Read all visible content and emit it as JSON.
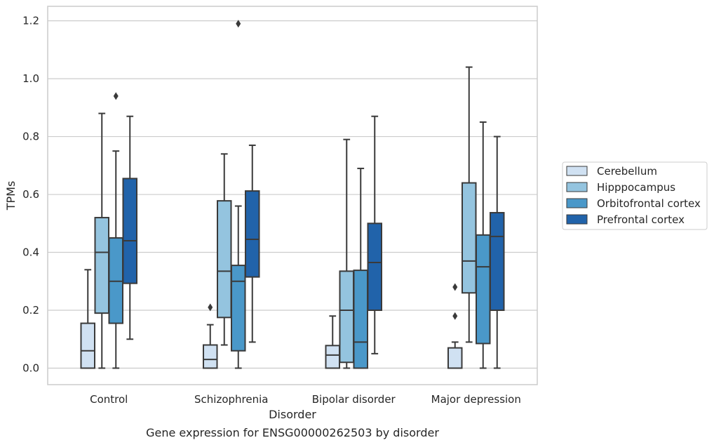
{
  "chart_data": {
    "type": "box",
    "title": "",
    "caption": "Gene expression for ENSG00000262503 by disorder",
    "xlabel": "Disorder",
    "ylabel": "TPMs",
    "ylim": [
      -0.057,
      1.25
    ],
    "yticks": [
      0.0,
      0.2,
      0.4,
      0.6,
      0.8,
      1.0,
      1.2
    ],
    "ytick_labels": [
      "0.0",
      "0.2",
      "0.4",
      "0.6",
      "0.8",
      "1.0",
      "1.2"
    ],
    "grid": "horizontal",
    "legend_position": "right",
    "categories": [
      "Control",
      "Schizophrenia",
      "Bipolar disorder",
      "Major depression"
    ],
    "series": [
      {
        "name": "Cerebellum",
        "color": "#d0e1f2",
        "boxes": [
          {
            "whisker_low": 0.0,
            "q1": 0.0,
            "median": 0.06,
            "q3": 0.155,
            "whisker_high": 0.34,
            "outliers": []
          },
          {
            "whisker_low": 0.0,
            "q1": 0.0,
            "median": 0.03,
            "q3": 0.08,
            "whisker_high": 0.15,
            "outliers": [
              0.21
            ]
          },
          {
            "whisker_low": 0.0,
            "q1": 0.0,
            "median": 0.045,
            "q3": 0.078,
            "whisker_high": 0.18,
            "outliers": []
          },
          {
            "whisker_low": 0.0,
            "q1": 0.0,
            "median": 0.0,
            "q3": 0.07,
            "whisker_high": 0.09,
            "outliers": [
              0.18,
              0.28
            ]
          }
        ]
      },
      {
        "name": "Hipppocampus",
        "color": "#94c4df",
        "boxes": [
          {
            "whisker_low": 0.0,
            "q1": 0.19,
            "median": 0.4,
            "q3": 0.52,
            "whisker_high": 0.88,
            "outliers": []
          },
          {
            "whisker_low": 0.08,
            "q1": 0.175,
            "median": 0.335,
            "q3": 0.578,
            "whisker_high": 0.74,
            "outliers": []
          },
          {
            "whisker_low": 0.0,
            "q1": 0.02,
            "median": 0.2,
            "q3": 0.335,
            "whisker_high": 0.79,
            "outliers": []
          },
          {
            "whisker_low": 0.09,
            "q1": 0.26,
            "median": 0.37,
            "q3": 0.64,
            "whisker_high": 1.04,
            "outliers": []
          }
        ]
      },
      {
        "name": "Orbitofrontal cortex",
        "color": "#4a98c9",
        "boxes": [
          {
            "whisker_low": 0.0,
            "q1": 0.155,
            "median": 0.3,
            "q3": 0.45,
            "whisker_high": 0.75,
            "outliers": [
              0.94
            ]
          },
          {
            "whisker_low": 0.0,
            "q1": 0.06,
            "median": 0.3,
            "q3": 0.355,
            "whisker_high": 0.56,
            "outliers": [
              1.19
            ]
          },
          {
            "whisker_low": 0.0,
            "q1": 0.0,
            "median": 0.09,
            "q3": 0.338,
            "whisker_high": 0.69,
            "outliers": []
          },
          {
            "whisker_low": 0.0,
            "q1": 0.085,
            "median": 0.35,
            "q3": 0.46,
            "whisker_high": 0.85,
            "outliers": []
          }
        ]
      },
      {
        "name": "Prefrontal cortex",
        "color": "#2163aa",
        "boxes": [
          {
            "whisker_low": 0.1,
            "q1": 0.293,
            "median": 0.44,
            "q3": 0.655,
            "whisker_high": 0.87,
            "outliers": []
          },
          {
            "whisker_low": 0.09,
            "q1": 0.315,
            "median": 0.445,
            "q3": 0.612,
            "whisker_high": 0.77,
            "outliers": []
          },
          {
            "whisker_low": 0.05,
            "q1": 0.2,
            "median": 0.365,
            "q3": 0.5,
            "whisker_high": 0.87,
            "outliers": []
          },
          {
            "whisker_low": 0.0,
            "q1": 0.2,
            "median": 0.455,
            "q3": 0.537,
            "whisker_high": 0.8,
            "outliers": []
          }
        ]
      }
    ]
  }
}
